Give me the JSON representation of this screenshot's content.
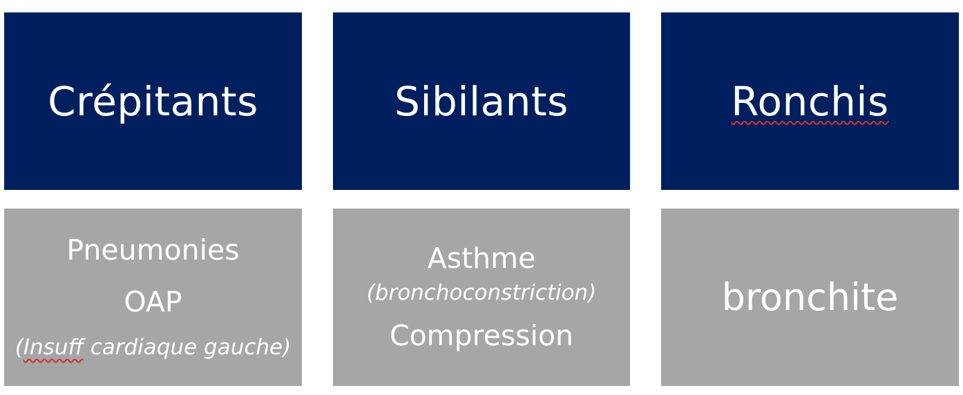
{
  "headers": {
    "col1": "Crépitants",
    "col2": "Sibilants",
    "col3": "Ronchis"
  },
  "col1": {
    "line1": "Pneumonies",
    "line2": "OAP",
    "line3_open": "(",
    "line3_word": "Insuff",
    "line3_rest": " cardiaque gauche)"
  },
  "col2": {
    "line1": "Asthme",
    "line2": "(bronchoconstriction)",
    "line3": "Compression"
  },
  "col3": {
    "line1": "bronchite"
  },
  "colors": {
    "header_bg": "#001f5f",
    "body_bg": "#a6a6a6",
    "text": "#ffffff",
    "spellcheck": "#d0312d"
  }
}
